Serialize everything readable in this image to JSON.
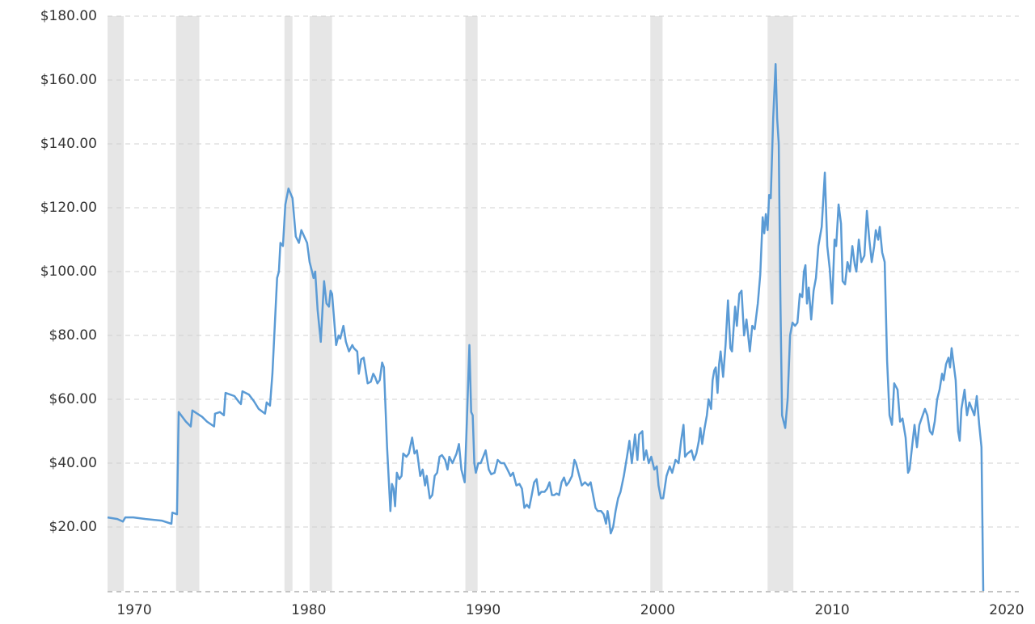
{
  "chart_data": {
    "type": "line",
    "color": "#5b9bd5",
    "shade_color": "#e6e6e6",
    "xlim": [
      1968.47,
      2020.7
    ],
    "xticks": [
      1970,
      1980,
      1990,
      2000,
      2010,
      2020
    ],
    "ylim": [
      0,
      180
    ],
    "yticks": [
      {
        "value": 20,
        "label": "$20.00"
      },
      {
        "value": 40,
        "label": "$40.00"
      },
      {
        "value": 60,
        "label": "$60.00"
      },
      {
        "value": 80,
        "label": "$80.00"
      },
      {
        "value": 100,
        "label": "$100.00"
      },
      {
        "value": 120,
        "label": "$120.00"
      },
      {
        "value": 140,
        "label": "$140.00"
      },
      {
        "value": 160,
        "label": "$160.00"
      },
      {
        "value": 180,
        "label": "$180.00"
      }
    ],
    "grid": true,
    "shaded_ranges": [
      [
        1968.47,
        1969.4
      ],
      [
        1972.4,
        1973.73
      ],
      [
        1978.61,
        1979.07
      ],
      [
        1980.05,
        1981.34
      ],
      [
        1988.98,
        1989.68
      ],
      [
        1999.58,
        2000.28
      ],
      [
        2006.3,
        2007.78
      ]
    ],
    "x": [
      1968.47,
      1969.03,
      1969.35,
      1969.49,
      1969.95,
      1970.65,
      1971.57,
      1972.13,
      1972.18,
      1972.45,
      1972.55,
      1972.96,
      1973.24,
      1973.33,
      1973.89,
      1974.17,
      1974.58,
      1974.63,
      1974.91,
      1975.14,
      1975.23,
      1975.74,
      1976.02,
      1976.11,
      1976.2,
      1976.57,
      1976.85,
      1977.13,
      1977.5,
      1977.59,
      1977.78,
      1977.92,
      1978.19,
      1978.29,
      1978.38,
      1978.52,
      1978.66,
      1978.84,
      1979.07,
      1979.26,
      1979.44,
      1979.58,
      1979.91,
      1980.05,
      1980.19,
      1980.28,
      1980.37,
      1980.51,
      1980.69,
      1980.79,
      1980.88,
      1981.02,
      1981.16,
      1981.25,
      1981.34,
      1981.57,
      1981.71,
      1981.81,
      1981.99,
      1982.13,
      1982.31,
      1982.5,
      1982.59,
      1982.78,
      1982.87,
      1983.01,
      1983.15,
      1983.38,
      1983.56,
      1983.7,
      1983.8,
      1983.94,
      1984.07,
      1984.21,
      1984.31,
      1984.49,
      1984.68,
      1984.77,
      1984.86,
      1984.95,
      1985.05,
      1985.19,
      1985.32,
      1985.42,
      1985.6,
      1985.74,
      1985.93,
      1986.06,
      1986.2,
      1986.39,
      1986.53,
      1986.67,
      1986.76,
      1986.94,
      1987.08,
      1987.22,
      1987.36,
      1987.5,
      1987.64,
      1987.82,
      1987.96,
      1988.06,
      1988.24,
      1988.47,
      1988.61,
      1988.75,
      1988.94,
      1989.07,
      1989.21,
      1989.31,
      1989.4,
      1989.49,
      1989.58,
      1989.72,
      1989.86,
      1990,
      1990.14,
      1990.32,
      1990.46,
      1990.65,
      1990.83,
      1991.02,
      1991.2,
      1991.39,
      1991.57,
      1991.71,
      1991.9,
      1992.08,
      1992.22,
      1992.36,
      1992.5,
      1992.64,
      1992.78,
      1992.92,
      1993.06,
      1993.19,
      1993.33,
      1993.52,
      1993.66,
      1993.8,
      1993.94,
      1994.07,
      1994.21,
      1994.35,
      1994.49,
      1994.63,
      1994.77,
      1994.91,
      1995.09,
      1995.23,
      1995.32,
      1995.46,
      1995.65,
      1995.83,
      1996.02,
      1996.16,
      1996.3,
      1996.44,
      1996.57,
      1996.76,
      1996.9,
      1997.04,
      1997.13,
      1997.22,
      1997.31,
      1997.45,
      1997.59,
      1997.73,
      1997.87,
      1998.06,
      1998.24,
      1998.38,
      1998.52,
      1998.7,
      1998.84,
      1998.94,
      1999.12,
      1999.21,
      1999.35,
      1999.49,
      1999.63,
      1999.81,
      1999.95,
      2000.05,
      2000.19,
      2000.32,
      2000.51,
      2000.69,
      2000.83,
      2001.02,
      2001.2,
      2001.34,
      2001.48,
      2001.57,
      2001.71,
      2001.94,
      2002.08,
      2002.22,
      2002.36,
      2002.45,
      2002.55,
      2002.69,
      2002.82,
      2002.92,
      2003.06,
      2003.15,
      2003.24,
      2003.33,
      2003.43,
      2003.52,
      2003.61,
      2003.75,
      2003.89,
      2004.03,
      2004.17,
      2004.26,
      2004.44,
      2004.54,
      2004.68,
      2004.81,
      2004.95,
      2005.09,
      2005.28,
      2005.42,
      2005.56,
      2005.74,
      2005.88,
      2006.02,
      2006.11,
      2006.2,
      2006.3,
      2006.39,
      2006.48,
      2006.62,
      2006.76,
      2006.85,
      2006.94,
      2007.04,
      2007.13,
      2007.31,
      2007.45,
      2007.59,
      2007.73,
      2007.87,
      2008.01,
      2008.15,
      2008.29,
      2008.38,
      2008.47,
      2008.56,
      2008.66,
      2008.8,
      2008.94,
      2009.07,
      2009.21,
      2009.4,
      2009.58,
      2009.72,
      2009.86,
      2010,
      2010.14,
      2010.23,
      2010.37,
      2010.51,
      2010.6,
      2010.74,
      2010.88,
      2011.02,
      2011.16,
      2011.3,
      2011.39,
      2011.53,
      2011.67,
      2011.85,
      2011.99,
      2012.13,
      2012.27,
      2012.41,
      2012.5,
      2012.64,
      2012.73,
      2012.87,
      2013.01,
      2013.15,
      2013.29,
      2013.43,
      2013.56,
      2013.75,
      2013.89,
      2014.03,
      2014.21,
      2014.35,
      2014.44,
      2014.58,
      2014.72,
      2014.86,
      2015,
      2015.19,
      2015.32,
      2015.46,
      2015.6,
      2015.74,
      2015.88,
      2016.02,
      2016.16,
      2016.3,
      2016.39,
      2016.53,
      2016.67,
      2016.76,
      2016.85,
      2016.99,
      2017.08,
      2017.22,
      2017.31,
      2017.41,
      2017.59,
      2017.73,
      2017.87,
      2018.01,
      2018.15,
      2018.29,
      2018.43,
      2018.56,
      2018.66
    ],
    "values": [
      23,
      22.5,
      21.7,
      23,
      23,
      22.5,
      22,
      21,
      24.5,
      24,
      56,
      53,
      51.5,
      56.5,
      54.5,
      53,
      51.5,
      55.5,
      56,
      55,
      62,
      61,
      59,
      58.5,
      62.5,
      61.5,
      59.5,
      57,
      55.5,
      59,
      58,
      68,
      98,
      100,
      109,
      108,
      121,
      126,
      123,
      111,
      109,
      113,
      109,
      103,
      100,
      98,
      100,
      88,
      78,
      88,
      97,
      90,
      89,
      94,
      93,
      77,
      80,
      79,
      83,
      78,
      75,
      77,
      76,
      75,
      68,
      72.5,
      73,
      65,
      65.5,
      68,
      67,
      65,
      66,
      71.5,
      70,
      45,
      25,
      33.5,
      32,
      26.5,
      37,
      35,
      36,
      43,
      42,
      43,
      48,
      43,
      44,
      36,
      38,
      33,
      36,
      29,
      30,
      36,
      37,
      42,
      42.5,
      41,
      38,
      42,
      40,
      43,
      46,
      38,
      34,
      54,
      77,
      56,
      55,
      40,
      37,
      40,
      40,
      42,
      44,
      38,
      36.5,
      37,
      41,
      40,
      40,
      38,
      36,
      37,
      33,
      33.5,
      32,
      26,
      27,
      26,
      30,
      34,
      35,
      30,
      31,
      31,
      32,
      34,
      30,
      30,
      30.5,
      30,
      34,
      35.5,
      33,
      34,
      36,
      41,
      40,
      37,
      33,
      34,
      33,
      34,
      30,
      26,
      25,
      25,
      24,
      21,
      25,
      22,
      18,
      20,
      25,
      29,
      31,
      36,
      42,
      47,
      40,
      49,
      41,
      49,
      50,
      41,
      44,
      40,
      42,
      38,
      39,
      33,
      29,
      29,
      36,
      39,
      37,
      41,
      40,
      47,
      52,
      42,
      43,
      44,
      41,
      43,
      47,
      51,
      46,
      51,
      55,
      60,
      57,
      66,
      69,
      70,
      62,
      71,
      75,
      67,
      77,
      91,
      76,
      75,
      89,
      83,
      93,
      94,
      80,
      85,
      75,
      83,
      82,
      90,
      99,
      117,
      112,
      118,
      113,
      124,
      123,
      148,
      165,
      148,
      140,
      90,
      55,
      51,
      60,
      80,
      84,
      83,
      84,
      93,
      92,
      100,
      102,
      90,
      95,
      85,
      94,
      98,
      108,
      114,
      131,
      108,
      101,
      90,
      110,
      108,
      121,
      115,
      97,
      96,
      103,
      100,
      108,
      102,
      100,
      110,
      103,
      105,
      119,
      110,
      103,
      108,
      113,
      110,
      114,
      106,
      103,
      72,
      55,
      52,
      65,
      63,
      53,
      54,
      48,
      37,
      38,
      45,
      52,
      45,
      52,
      55,
      57,
      55,
      50,
      49,
      53,
      60,
      63,
      68,
      66,
      71,
      73,
      70,
      76,
      70,
      66,
      50,
      47,
      57,
      63,
      55,
      59,
      57,
      55,
      61,
      52,
      45,
      0
    ]
  }
}
